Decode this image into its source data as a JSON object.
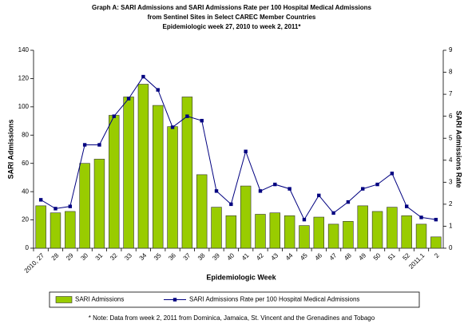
{
  "chart_data": {
    "type": "bar-line",
    "title": [
      "Graph A: SARI Admissions and SARI Admissions Rate per 100 Hospital Medical Admissions",
      "from Sentinel Sites in Select CAREC Member Countries",
      "Epidemiologic week 27, 2010 to week 2, 2011*"
    ],
    "x_label": "Epidemiologic Week",
    "y_label": "SARI Admissions",
    "y2_label": "SARI Admissions Rate",
    "categories": [
      "2010, 27",
      "28",
      "29",
      "30",
      "31",
      "32",
      "33",
      "34",
      "35",
      "36",
      "37",
      "38",
      "39",
      "40",
      "41",
      "42",
      "43",
      "44",
      "45",
      "46",
      "47",
      "48",
      "49",
      "50",
      "51",
      "52",
      "2011,1",
      "2"
    ],
    "series": [
      {
        "name": "SARI Admissions",
        "color": "#99cc00",
        "kind": "bar",
        "values": [
          30,
          25,
          26,
          60,
          63,
          94,
          107,
          116,
          101,
          86,
          107,
          52,
          29,
          23,
          44,
          24,
          25,
          23,
          16,
          22,
          17,
          19,
          30,
          26,
          29,
          23,
          17,
          8
        ]
      },
      {
        "name": "SARI Admissions Rate per 100 Hospital Medical Admissions",
        "color": "#000080",
        "kind": "line",
        "axis": "y2",
        "values": [
          2.2,
          1.8,
          1.9,
          4.7,
          4.7,
          6.0,
          6.8,
          7.8,
          7.2,
          5.5,
          6.0,
          5.8,
          2.6,
          2.0,
          4.4,
          2.6,
          2.9,
          2.7,
          1.3,
          2.4,
          1.6,
          2.1,
          2.7,
          2.9,
          3.4,
          1.9,
          1.4,
          1.3
        ]
      }
    ],
    "ylim": [
      0,
      140
    ],
    "yticks": [
      0,
      20,
      40,
      60,
      80,
      100,
      120,
      140
    ],
    "y2lim": [
      0,
      9
    ],
    "y2ticks": [
      0,
      1,
      2,
      3,
      4,
      5,
      6,
      7,
      8,
      9
    ],
    "legend": "bottom",
    "note": "* Note: Data from week 2, 2011 from Dominica, Jamaica, St. Vincent and the Grenadines and Tobago"
  }
}
